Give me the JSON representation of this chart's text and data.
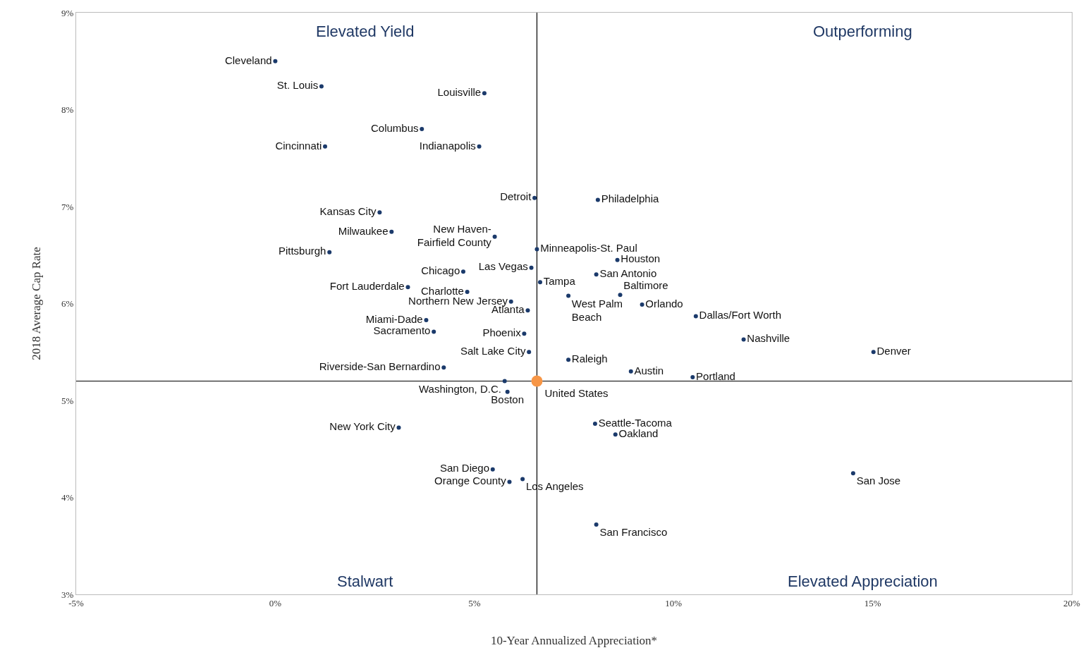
{
  "chart_data": {
    "type": "scatter",
    "xlabel": "10-Year Annualized Appreciation*",
    "ylabel": "2018 Average Cap Rate",
    "xlim": [
      -5,
      20
    ],
    "ylim": [
      3,
      9
    ],
    "xticks": [
      {
        "value": -5,
        "label": "-5%"
      },
      {
        "value": 0,
        "label": "0%"
      },
      {
        "value": 5,
        "label": "5%"
      },
      {
        "value": 10,
        "label": "10%"
      },
      {
        "value": 15,
        "label": "15%"
      },
      {
        "value": 20,
        "label": "20%"
      }
    ],
    "yticks": [
      {
        "value": 3,
        "label": "3%"
      },
      {
        "value": 4,
        "label": "4%"
      },
      {
        "value": 5,
        "label": "5%"
      },
      {
        "value": 6,
        "label": "6%"
      },
      {
        "value": 7,
        "label": "7%"
      },
      {
        "value": 8,
        "label": "8%"
      },
      {
        "value": 9,
        "label": "9%"
      }
    ],
    "grid": false,
    "legend": false,
    "marker": "circle",
    "ref_lines": [
      {
        "axis": "x",
        "value": 6.57,
        "color": "#000000"
      },
      {
        "axis": "y",
        "value": 5.2,
        "color": "#000000"
      }
    ],
    "annotations": [
      "Elevated Yield",
      "Outperforming",
      "Stalwart",
      "Elevated Appreciation"
    ],
    "series": [
      {
        "name": "Cleveland",
        "color": "#1b3a6b",
        "x": [
          0.0
        ],
        "values": [
          8.5
        ]
      },
      {
        "name": "St. Louis",
        "color": "#1b3a6b",
        "x": [
          1.16
        ],
        "values": [
          8.24
        ]
      },
      {
        "name": "Louisville",
        "color": "#1b3a6b",
        "x": [
          5.25
        ],
        "values": [
          8.17
        ]
      },
      {
        "name": "Columbus",
        "color": "#1b3a6b",
        "x": [
          3.68
        ],
        "values": [
          7.8
        ]
      },
      {
        "name": "Cincinnati",
        "color": "#1b3a6b",
        "x": [
          1.25
        ],
        "values": [
          7.62
        ]
      },
      {
        "name": "Indianapolis",
        "color": "#1b3a6b",
        "x": [
          5.12
        ],
        "values": [
          7.62
        ]
      },
      {
        "name": "Detroit",
        "color": "#1b3a6b",
        "x": [
          6.51
        ],
        "values": [
          7.09
        ]
      },
      {
        "name": "Philadelphia",
        "color": "#1b3a6b",
        "x": [
          8.1
        ],
        "values": [
          7.07
        ]
      },
      {
        "name": "Kansas City",
        "color": "#1b3a6b",
        "x": [
          2.62
        ],
        "values": [
          6.94
        ]
      },
      {
        "name": "Milwaukee",
        "color": "#1b3a6b",
        "x": [
          2.92
        ],
        "values": [
          6.74
        ]
      },
      {
        "name": "New Haven-Fairfield County",
        "color": "#1b3a6b",
        "x": [
          5.51
        ],
        "values": [
          6.69
        ]
      },
      {
        "name": "Pittsburgh",
        "color": "#1b3a6b",
        "x": [
          1.36
        ],
        "values": [
          6.53
        ]
      },
      {
        "name": "Minneapolis-St. Paul",
        "color": "#1b3a6b",
        "x": [
          6.57
        ],
        "values": [
          6.56
        ]
      },
      {
        "name": "Houston",
        "color": "#1b3a6b",
        "x": [
          8.59
        ],
        "values": [
          6.45
        ]
      },
      {
        "name": "Chicago",
        "color": "#1b3a6b",
        "x": [
          4.72
        ],
        "values": [
          6.33
        ]
      },
      {
        "name": "Las Vegas",
        "color": "#1b3a6b",
        "x": [
          6.43
        ],
        "values": [
          6.37
        ]
      },
      {
        "name": "San Antonio",
        "color": "#1b3a6b",
        "x": [
          8.06
        ],
        "values": [
          6.3
        ]
      },
      {
        "name": "Tampa",
        "color": "#1b3a6b",
        "x": [
          6.65
        ],
        "values": [
          6.22
        ]
      },
      {
        "name": "Fort Lauderdale",
        "color": "#1b3a6b",
        "x": [
          3.33
        ],
        "values": [
          6.17
        ]
      },
      {
        "name": "Charlotte",
        "color": "#1b3a6b",
        "x": [
          4.82
        ],
        "values": [
          6.12
        ]
      },
      {
        "name": "Baltimore",
        "color": "#1b3a6b",
        "x": [
          8.66
        ],
        "values": [
          6.09
        ]
      },
      {
        "name": "West Palm Beach",
        "color": "#1b3a6b",
        "x": [
          7.36
        ],
        "values": [
          6.08
        ]
      },
      {
        "name": "Northern New Jersey",
        "color": "#1b3a6b",
        "x": [
          5.92
        ],
        "values": [
          6.02
        ]
      },
      {
        "name": "Orlando",
        "color": "#1b3a6b",
        "x": [
          9.21
        ],
        "values": [
          5.99
        ]
      },
      {
        "name": "Atlanta",
        "color": "#1b3a6b",
        "x": [
          6.34
        ],
        "values": [
          5.93
        ]
      },
      {
        "name": "Dallas/Fort Worth",
        "color": "#1b3a6b",
        "x": [
          10.56
        ],
        "values": [
          5.87
        ]
      },
      {
        "name": "Miami-Dade",
        "color": "#1b3a6b",
        "x": [
          3.79
        ],
        "values": [
          5.83
        ]
      },
      {
        "name": "Sacramento",
        "color": "#1b3a6b",
        "x": [
          3.98
        ],
        "values": [
          5.71
        ]
      },
      {
        "name": "Phoenix",
        "color": "#1b3a6b",
        "x": [
          6.25
        ],
        "values": [
          5.69
        ]
      },
      {
        "name": "Nashville",
        "color": "#1b3a6b",
        "x": [
          11.76
        ],
        "values": [
          5.63
        ]
      },
      {
        "name": "Denver",
        "color": "#1b3a6b",
        "x": [
          15.02
        ],
        "values": [
          5.5
        ]
      },
      {
        "name": "Salt Lake City",
        "color": "#1b3a6b",
        "x": [
          6.37
        ],
        "values": [
          5.5
        ]
      },
      {
        "name": "Raleigh",
        "color": "#1b3a6b",
        "x": [
          7.36
        ],
        "values": [
          5.42
        ]
      },
      {
        "name": "Riverside-San Bernardino",
        "color": "#1b3a6b",
        "x": [
          4.23
        ],
        "values": [
          5.34
        ]
      },
      {
        "name": "Austin",
        "color": "#1b3a6b",
        "x": [
          8.93
        ],
        "values": [
          5.3
        ]
      },
      {
        "name": "Portland",
        "color": "#1b3a6b",
        "x": [
          10.48
        ],
        "values": [
          5.24
        ]
      },
      {
        "name": "Washington, D.C.",
        "color": "#1b3a6b",
        "x": [
          5.76
        ],
        "values": [
          5.2
        ]
      },
      {
        "name": "United States",
        "color": "#f79646",
        "x": [
          6.57
        ],
        "values": [
          5.2
        ]
      },
      {
        "name": "Boston",
        "color": "#1b3a6b",
        "x": [
          5.83
        ],
        "values": [
          5.09
        ]
      },
      {
        "name": "Seattle-Tacoma",
        "color": "#1b3a6b",
        "x": [
          8.03
        ],
        "values": [
          4.76
        ]
      },
      {
        "name": "New York City",
        "color": "#1b3a6b",
        "x": [
          3.1
        ],
        "values": [
          4.72
        ]
      },
      {
        "name": "Oakland",
        "color": "#1b3a6b",
        "x": [
          8.54
        ],
        "values": [
          4.65
        ]
      },
      {
        "name": "San Diego",
        "color": "#1b3a6b",
        "x": [
          5.46
        ],
        "values": [
          4.29
        ]
      },
      {
        "name": "San Jose",
        "color": "#1b3a6b",
        "x": [
          14.51
        ],
        "values": [
          4.25
        ]
      },
      {
        "name": "Los Angeles",
        "color": "#1b3a6b",
        "x": [
          6.21
        ],
        "values": [
          4.19
        ]
      },
      {
        "name": "Orange County",
        "color": "#1b3a6b",
        "x": [
          5.88
        ],
        "values": [
          4.16
        ]
      },
      {
        "name": "San Francisco",
        "color": "#1b3a6b",
        "x": [
          8.06
        ],
        "values": [
          3.72
        ]
      }
    ]
  }
}
